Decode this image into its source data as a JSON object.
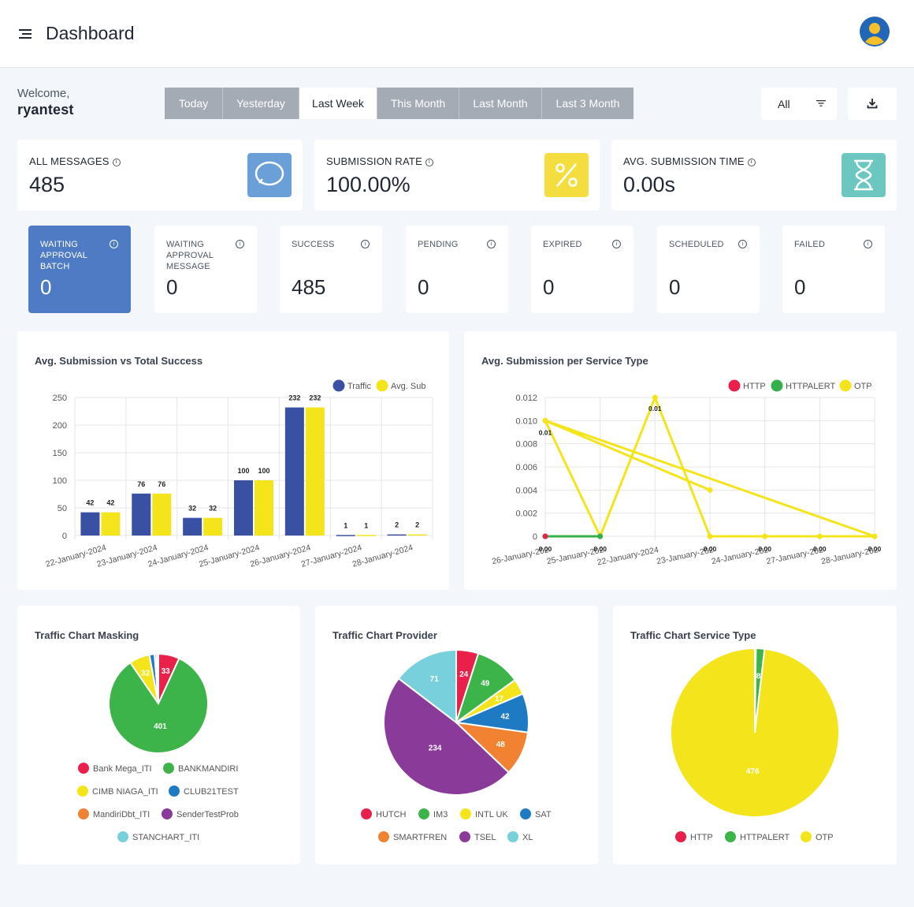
{
  "header": {
    "title": "Dashboard"
  },
  "welcome": {
    "label": "Welcome,",
    "username": "ryantest"
  },
  "date_ranges": [
    {
      "label": "Today",
      "active": false
    },
    {
      "label": "Yesterday",
      "active": false
    },
    {
      "label": "Last Week",
      "active": true
    },
    {
      "label": "This Month",
      "active": false
    },
    {
      "label": "Last Month",
      "active": false
    },
    {
      "label": "Last 3 Month",
      "active": false
    }
  ],
  "filter": {
    "value": "All"
  },
  "stats": [
    {
      "label": "ALL MESSAGES",
      "value": "485",
      "icon": "chat-bubble-icon",
      "color": "#6a9fd8"
    },
    {
      "label": "SUBMISSION RATE",
      "value": "100.00%",
      "icon": "percent-icon",
      "color": "#f4dd3f"
    },
    {
      "label": "AVG. SUBMISSION TIME",
      "value": "0.00s",
      "icon": "hourglass-icon",
      "color": "#6cc7c1"
    }
  ],
  "mini_stats": [
    {
      "label": "WAITING APPROVAL BATCH",
      "value": "0"
    },
    {
      "label": "WAITING APPROVAL MESSAGE",
      "value": "0"
    },
    {
      "label": "SUCCESS",
      "value": "485"
    },
    {
      "label": "PENDING",
      "value": "0"
    },
    {
      "label": "EXPIRED",
      "value": "0"
    },
    {
      "label": "SCHEDULED",
      "value": "0"
    },
    {
      "label": "FAILED",
      "value": "0"
    }
  ],
  "chart_data": [
    {
      "type": "bar",
      "title": "Avg. Submission vs Total Success",
      "categories": [
        "22-January-2024",
        "23-January-2024",
        "24-January-2024",
        "25-January-2024",
        "26-January-2024",
        "27-January-2024",
        "28-January-2024"
      ],
      "series": [
        {
          "name": "Traffic",
          "color": "#3a50a2",
          "values": [
            42,
            76,
            32,
            100,
            232,
            1,
            2
          ]
        },
        {
          "name": "Avg. Sub",
          "color": "#f4e41c",
          "values": [
            42,
            76,
            32,
            100,
            232,
            1,
            2
          ]
        }
      ],
      "ylim": [
        0,
        250
      ],
      "yticks": [
        0,
        50,
        100,
        150,
        200,
        250
      ],
      "legend": "top-right",
      "grid": true
    },
    {
      "type": "line",
      "title": "Avg. Submission per Service Type",
      "x": [
        "26-January-2024",
        "25-January-2024",
        "22-January-2024",
        "23-January-2024",
        "24-January-2024",
        "27-January-2024",
        "28-January-2024"
      ],
      "x_tick_labels": [
        "26-January-202",
        "25-January-202",
        "22-January-2024",
        "23-January-202",
        "24-January-202",
        "27-January-202",
        "28-January-202"
      ],
      "series": [
        {
          "name": "HTTP",
          "color": "#e8204a",
          "points": [
            [
              "26-January-2024",
              0
            ]
          ]
        },
        {
          "name": "HTTPALERT",
          "color": "#34b04a",
          "points": [
            [
              "26-January-2024",
              0
            ],
            [
              "25-January-2024",
              0
            ]
          ]
        },
        {
          "name": "OTP",
          "color": "#f4e41c",
          "points": [
            [
              "26-January-2024",
              0.01
            ],
            [
              "25-January-2024",
              0
            ],
            [
              "22-January-2024",
              0.012
            ],
            [
              "23-January-2024",
              0
            ],
            [
              "24-January-2024",
              0
            ],
            [
              "27-January-2024",
              0
            ],
            [
              "28-January-2024",
              0
            ],
            [
              "26-January-2024",
              0.01
            ],
            [
              "23-January-2024",
              0.004
            ]
          ]
        }
      ],
      "point_labels": [
        {
          "x": "26-January-2024",
          "label": "0.01"
        },
        {
          "x": "22-January-2024",
          "label": "0.01"
        },
        {
          "x": "26-January-2024",
          "label": "0.00"
        },
        {
          "x": "25-January-2024",
          "label": "0.00"
        },
        {
          "x": "23-January-2024",
          "label": "0.00"
        },
        {
          "x": "24-January-2024",
          "label": "0.00"
        },
        {
          "x": "27-January-2024",
          "label": "0.00"
        },
        {
          "x": "28-January-2024",
          "label": "0.00"
        }
      ],
      "ylim": [
        0,
        0.012
      ],
      "yticks": [
        "0",
        "0.002",
        "0.004",
        "0.006",
        "0.008",
        "0.010",
        "0.012"
      ],
      "legend": "top-right",
      "grid": true
    },
    {
      "type": "pie",
      "title": "Traffic Chart Masking",
      "slices": [
        {
          "label": "Bank Mega_ITI",
          "value": 33,
          "color": "#e8204a"
        },
        {
          "label": "BANKMANDIRI",
          "value": 401,
          "color": "#3db44a"
        },
        {
          "label": "CIMB NIAGA_ITI",
          "value": 32,
          "color": "#f4e41c"
        },
        {
          "label": "CLUB21TEST",
          "value": 8,
          "color": "#1f7ac4"
        },
        {
          "label": "MandiriDbt_ITI",
          "value": 0,
          "color": "#f08232"
        },
        {
          "label": "SenderTestProb",
          "value": 3,
          "color": "#8a3b9a"
        },
        {
          "label": "STANCHART_ITI",
          "value": 3,
          "color": "#78d0dc"
        }
      ],
      "shown_labels": [
        "33",
        "401",
        "32"
      ]
    },
    {
      "type": "pie",
      "title": "Traffic Chart Provider",
      "slices": [
        {
          "label": "HUTCH",
          "value": 24,
          "color": "#e8204a"
        },
        {
          "label": "IM3",
          "value": 49,
          "color": "#3db44a"
        },
        {
          "label": "INTL UK",
          "value": 17,
          "color": "#f4e41c"
        },
        {
          "label": "SAT",
          "value": 42,
          "color": "#1f7ac4"
        },
        {
          "label": "SMARTFREN",
          "value": 48,
          "color": "#f08232"
        },
        {
          "label": "TSEL",
          "value": 234,
          "color": "#8a3b9a"
        },
        {
          "label": "XL",
          "value": 71,
          "color": "#78d0dc"
        }
      ]
    },
    {
      "type": "pie",
      "title": "Traffic Chart Service Type",
      "slices": [
        {
          "label": "HTTP",
          "value": 1,
          "color": "#e8204a"
        },
        {
          "label": "HTTPALERT",
          "value": 8,
          "color": "#3db44a"
        },
        {
          "label": "OTP",
          "value": 476,
          "color": "#f4e41c"
        }
      ]
    }
  ]
}
